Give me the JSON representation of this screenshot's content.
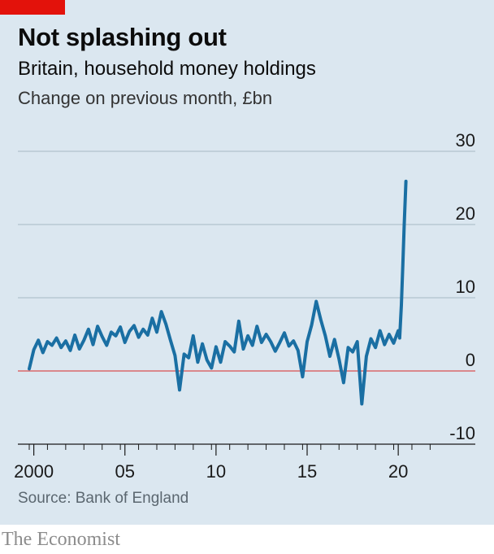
{
  "header": {
    "title": "Not splashing out",
    "subtitle": "Britain, household money holdings",
    "unit": "Change on previous month, £bn"
  },
  "footer": {
    "source": "Source: Bank of England",
    "brand": "The Economist"
  },
  "colors": {
    "background": "#dbe7f0",
    "accent": "#e3120b",
    "line": "#1a6fa3",
    "zero_line": "#d94f4f",
    "grid": "#a7b8c4"
  },
  "chart_data": {
    "type": "line",
    "title": "Not splashing out",
    "subtitle": "Britain, household money holdings",
    "ylabel": "Change on previous month, £bn",
    "ylim": [
      -10,
      30
    ],
    "yticks": [
      30,
      20,
      10,
      0,
      -10
    ],
    "ytick_labels": [
      "30",
      "20",
      "10",
      "0",
      "-10"
    ],
    "xlim": [
      1999.5,
      2022.5
    ],
    "xticks": [
      2000,
      2005,
      2010,
      2015,
      2020
    ],
    "xtick_labels": [
      "2000",
      "05",
      "10",
      "15",
      "20"
    ],
    "grid": true,
    "series": [
      {
        "name": "",
        "x": [
          1999.75,
          2000.0,
          2000.25,
          2000.5,
          2000.75,
          2001.0,
          2001.25,
          2001.5,
          2001.75,
          2002.0,
          2002.25,
          2002.5,
          2002.75,
          2003.0,
          2003.25,
          2003.5,
          2003.75,
          2004.0,
          2004.25,
          2004.5,
          2004.75,
          2005.0,
          2005.25,
          2005.5,
          2005.75,
          2006.0,
          2006.25,
          2006.5,
          2006.75,
          2007.0,
          2007.25,
          2007.5,
          2007.75,
          2008.0,
          2008.25,
          2008.5,
          2008.75,
          2009.0,
          2009.25,
          2009.5,
          2009.75,
          2010.0,
          2010.25,
          2010.5,
          2010.75,
          2011.0,
          2011.25,
          2011.5,
          2011.75,
          2012.0,
          2012.25,
          2012.5,
          2012.75,
          2013.0,
          2013.25,
          2013.5,
          2013.75,
          2014.0,
          2014.25,
          2014.5,
          2014.75,
          2015.0,
          2015.25,
          2015.5,
          2015.75,
          2016.0,
          2016.25,
          2016.5,
          2016.75,
          2017.0,
          2017.25,
          2017.5,
          2017.75,
          2018.0,
          2018.25,
          2018.5,
          2018.75,
          2019.0,
          2019.25,
          2019.5,
          2019.75,
          2020.0,
          2020.08,
          2020.17,
          2020.25,
          2020.33,
          2020.42
        ],
        "values": [
          0.3,
          2.9,
          4.2,
          2.5,
          4.0,
          3.5,
          4.5,
          3.2,
          4.1,
          2.8,
          4.9,
          3.0,
          4.2,
          5.7,
          3.6,
          6.1,
          4.7,
          3.5,
          5.3,
          4.8,
          6.0,
          3.9,
          5.4,
          6.2,
          4.6,
          5.7,
          4.9,
          7.2,
          5.3,
          8.1,
          6.4,
          4.2,
          2.1,
          -2.6,
          2.3,
          1.8,
          4.8,
          1.2,
          3.7,
          1.5,
          0.4,
          3.3,
          1.2,
          4.0,
          3.4,
          2.6,
          6.8,
          3.0,
          4.8,
          3.5,
          6.1,
          3.9,
          5.0,
          4.0,
          2.7,
          3.9,
          5.2,
          3.4,
          4.1,
          2.8,
          -0.8,
          4.0,
          6.3,
          9.5,
          7.0,
          4.8,
          2.0,
          4.3,
          1.6,
          -1.6,
          3.2,
          2.6,
          4.0,
          -4.5,
          2.0,
          4.4,
          3.2,
          5.5,
          3.6,
          5.0,
          3.8,
          5.5,
          4.5,
          9.0,
          14.5,
          20.0,
          25.9
        ]
      }
    ]
  }
}
